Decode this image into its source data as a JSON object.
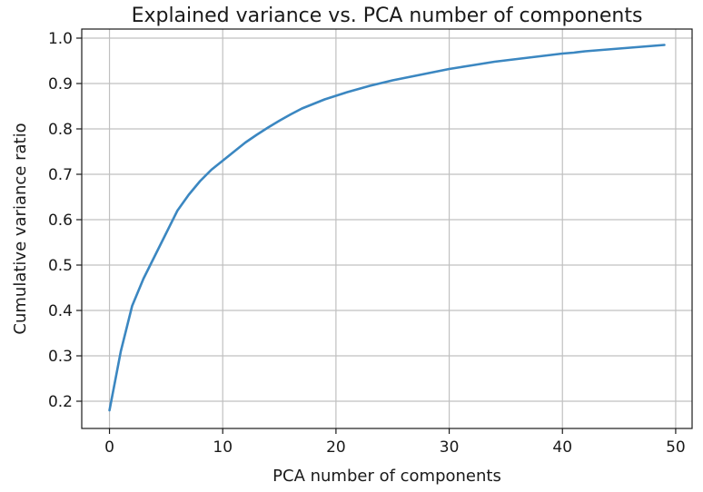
{
  "chart_data": {
    "type": "line",
    "title": "Explained variance vs. PCA number of components",
    "xlabel": "PCA number of components",
    "ylabel": "Cumulative variance ratio",
    "xlim": [
      -2.45,
      51.45
    ],
    "ylim": [
      0.14,
      1.02
    ],
    "xticks": [
      "0",
      "10",
      "20",
      "30",
      "40",
      "50"
    ],
    "yticks": [
      "0.2",
      "0.3",
      "0.4",
      "0.5",
      "0.6",
      "0.7",
      "0.8",
      "0.9",
      "1.0"
    ],
    "grid": true,
    "series": [
      {
        "color": "#3b87c1",
        "x": [
          0,
          1,
          2,
          3,
          4,
          5,
          6,
          7,
          8,
          9,
          10,
          11,
          12,
          13,
          14,
          15,
          16,
          17,
          18,
          19,
          20,
          21,
          22,
          23,
          24,
          25,
          26,
          27,
          28,
          29,
          30,
          31,
          32,
          33,
          34,
          35,
          36,
          37,
          38,
          39,
          40,
          41,
          42,
          43,
          44,
          45,
          46,
          47,
          48,
          49
        ],
        "y": [
          0.18,
          0.31,
          0.41,
          0.47,
          0.52,
          0.57,
          0.62,
          0.655,
          0.685,
          0.71,
          0.73,
          0.75,
          0.77,
          0.787,
          0.803,
          0.818,
          0.832,
          0.845,
          0.855,
          0.865,
          0.873,
          0.881,
          0.888,
          0.895,
          0.901,
          0.907,
          0.912,
          0.917,
          0.922,
          0.927,
          0.932,
          0.936,
          0.94,
          0.944,
          0.948,
          0.951,
          0.954,
          0.957,
          0.96,
          0.963,
          0.966,
          0.968,
          0.971,
          0.973,
          0.975,
          0.977,
          0.979,
          0.981,
          0.983,
          0.985
        ]
      }
    ]
  }
}
